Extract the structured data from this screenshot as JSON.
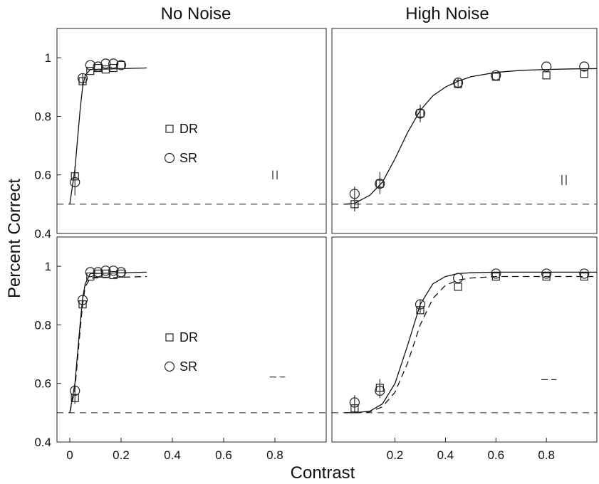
{
  "figure": {
    "xlabel": "Contrast",
    "ylabel": "Percent Correct",
    "column_titles": [
      "No Noise",
      "High Noise"
    ]
  },
  "chart_data": [
    {
      "type": "line",
      "title": "No Noise",
      "panel": "top-left",
      "xlim": [
        -0.05,
        1.0
      ],
      "ylim": [
        0.4,
        1.1
      ],
      "x_ticks": [],
      "x_tick_labels": [],
      "y_ticks": [
        0.4,
        0.6,
        0.8,
        1.0
      ],
      "y_tick_labels": [
        "0.4",
        "0.6",
        "0.8",
        "1"
      ],
      "legend": [
        {
          "label": "DR",
          "marker": "square"
        },
        {
          "label": "SR",
          "marker": "circle"
        }
      ],
      "legend_placement": "center",
      "chance_level": 0.5,
      "series": [
        {
          "name": "DR",
          "marker": "square",
          "x": [
            0.02,
            0.05,
            0.08,
            0.11,
            0.14,
            0.17,
            0.2
          ],
          "y": [
            0.595,
            0.92,
            0.955,
            0.965,
            0.96,
            0.965,
            0.975
          ]
        },
        {
          "name": "SR",
          "marker": "circle",
          "x": [
            0.02,
            0.05,
            0.08,
            0.11,
            0.14,
            0.17,
            0.2
          ],
          "y": [
            0.575,
            0.93,
            0.975,
            0.97,
            0.98,
            0.98,
            0.975
          ]
        }
      ],
      "fits": [
        {
          "style": "solid",
          "x": [
            0.0,
            0.02,
            0.04,
            0.05,
            0.06,
            0.08,
            0.3
          ],
          "y": [
            0.5,
            0.62,
            0.82,
            0.9,
            0.94,
            0.96,
            0.965
          ]
        }
      ],
      "error_bars": [
        {
          "x": 0.02,
          "ylow": 0.53,
          "yhigh": 0.63
        },
        {
          "x": 0.05,
          "ylow": 0.9,
          "yhigh": 0.945
        }
      ],
      "annotation": {
        "kind": "double-vertical",
        "x": 0.8,
        "y": [
          0.585,
          0.615
        ]
      }
    },
    {
      "type": "line",
      "title": "High Noise",
      "panel": "top-right",
      "xlim": [
        -0.05,
        1.0
      ],
      "ylim": [
        0.4,
        1.1
      ],
      "x_ticks": [],
      "x_tick_labels": [],
      "y_ticks": [],
      "y_tick_labels": [],
      "chance_level": 0.5,
      "series": [
        {
          "name": "DR",
          "marker": "square",
          "x": [
            0.04,
            0.14,
            0.3,
            0.45,
            0.6,
            0.8,
            0.95
          ],
          "y": [
            0.5,
            0.57,
            0.81,
            0.91,
            0.935,
            0.94,
            0.945
          ]
        },
        {
          "name": "SR",
          "marker": "circle",
          "x": [
            0.04,
            0.14,
            0.3,
            0.45,
            0.6,
            0.8,
            0.95
          ],
          "y": [
            0.535,
            0.57,
            0.81,
            0.915,
            0.94,
            0.97,
            0.97
          ]
        }
      ],
      "fits": [
        {
          "style": "solid",
          "x": [
            0.0,
            0.04,
            0.1,
            0.15,
            0.2,
            0.25,
            0.3,
            0.35,
            0.4,
            0.45,
            0.5,
            0.6,
            0.7,
            0.8,
            0.9,
            1.0
          ],
          "y": [
            0.5,
            0.503,
            0.53,
            0.575,
            0.655,
            0.745,
            0.82,
            0.87,
            0.9,
            0.92,
            0.935,
            0.95,
            0.957,
            0.96,
            0.962,
            0.963
          ]
        }
      ],
      "error_bars": [
        {
          "x": 0.04,
          "ylow": 0.475,
          "yhigh": 0.56
        },
        {
          "x": 0.14,
          "ylow": 0.535,
          "yhigh": 0.61
        },
        {
          "x": 0.3,
          "ylow": 0.78,
          "yhigh": 0.84
        },
        {
          "x": 0.45,
          "ylow": 0.895,
          "yhigh": 0.93
        }
      ],
      "annotation": {
        "kind": "double-vertical",
        "x": 0.87,
        "y": [
          0.565,
          0.6
        ]
      }
    },
    {
      "type": "line",
      "title": "",
      "panel": "bottom-left",
      "xlim": [
        -0.05,
        1.0
      ],
      "ylim": [
        0.4,
        1.1
      ],
      "x_ticks": [
        0,
        0.2,
        0.4,
        0.6,
        0.8
      ],
      "x_tick_labels": [
        "0",
        "0.2",
        "0.4",
        "0.6",
        "0.8"
      ],
      "y_ticks": [
        0.4,
        0.6,
        0.8,
        1.0
      ],
      "y_tick_labels": [
        "0.4",
        "0.6",
        "0.8",
        "1"
      ],
      "legend": [
        {
          "label": "DR",
          "marker": "square"
        },
        {
          "label": "SR",
          "marker": "circle"
        }
      ],
      "legend_placement": "center",
      "chance_level": 0.5,
      "series": [
        {
          "name": "DR",
          "marker": "square",
          "x": [
            0.02,
            0.05,
            0.08,
            0.11,
            0.14,
            0.17,
            0.2
          ],
          "y": [
            0.55,
            0.87,
            0.965,
            0.975,
            0.975,
            0.97,
            0.975
          ]
        },
        {
          "name": "SR",
          "marker": "circle",
          "x": [
            0.02,
            0.05,
            0.08,
            0.11,
            0.14,
            0.17,
            0.2
          ],
          "y": [
            0.575,
            0.885,
            0.98,
            0.98,
            0.985,
            0.985,
            0.98
          ]
        }
      ],
      "fits": [
        {
          "style": "solid",
          "x": [
            0.0,
            0.02,
            0.04,
            0.05,
            0.06,
            0.08,
            0.3
          ],
          "y": [
            0.5,
            0.6,
            0.8,
            0.89,
            0.94,
            0.975,
            0.98
          ]
        },
        {
          "style": "dashed",
          "x": [
            0.0,
            0.02,
            0.04,
            0.05,
            0.06,
            0.08,
            0.3
          ],
          "y": [
            0.5,
            0.58,
            0.78,
            0.87,
            0.93,
            0.96,
            0.965
          ]
        }
      ],
      "error_bars": [
        {
          "x": 0.02,
          "ylow": 0.53,
          "yhigh": 0.6
        },
        {
          "x": 0.05,
          "ylow": 0.86,
          "yhigh": 0.9
        }
      ],
      "annotation": {
        "kind": "horizontal-dash",
        "x": [
          0.78,
          0.84
        ],
        "y": 0.622
      }
    },
    {
      "type": "line",
      "title": "",
      "panel": "bottom-right",
      "xlim": [
        -0.05,
        1.0
      ],
      "ylim": [
        0.4,
        1.1
      ],
      "x_ticks": [
        0.2,
        0.4,
        0.6,
        0.8
      ],
      "x_tick_labels": [
        "0.2",
        "0.4",
        "0.6",
        "0.8"
      ],
      "y_ticks": [],
      "y_tick_labels": [],
      "chance_level": 0.5,
      "series": [
        {
          "name": "DR",
          "marker": "square",
          "x": [
            0.04,
            0.14,
            0.3,
            0.45,
            0.6,
            0.8,
            0.95
          ],
          "y": [
            0.515,
            0.585,
            0.85,
            0.93,
            0.965,
            0.965,
            0.965
          ]
        },
        {
          "name": "SR",
          "marker": "circle",
          "x": [
            0.04,
            0.14,
            0.3,
            0.45,
            0.6,
            0.8,
            0.95
          ],
          "y": [
            0.535,
            0.575,
            0.87,
            0.96,
            0.975,
            0.975,
            0.975
          ]
        }
      ],
      "fits": [
        {
          "style": "solid",
          "x": [
            0.0,
            0.04,
            0.1,
            0.15,
            0.2,
            0.25,
            0.3,
            0.35,
            0.4,
            0.45,
            0.5,
            0.6,
            0.8,
            1.0
          ],
          "y": [
            0.5,
            0.5,
            0.505,
            0.53,
            0.6,
            0.73,
            0.87,
            0.94,
            0.965,
            0.975,
            0.978,
            0.98,
            0.98,
            0.98
          ]
        },
        {
          "style": "dashed",
          "x": [
            0.0,
            0.04,
            0.1,
            0.15,
            0.2,
            0.25,
            0.3,
            0.35,
            0.4,
            0.45,
            0.5,
            0.6,
            0.8,
            1.0
          ],
          "y": [
            0.5,
            0.5,
            0.503,
            0.52,
            0.57,
            0.67,
            0.8,
            0.89,
            0.935,
            0.953,
            0.96,
            0.965,
            0.965,
            0.965
          ]
        }
      ],
      "error_bars": [
        {
          "x": 0.04,
          "ylow": 0.5,
          "yhigh": 0.56
        },
        {
          "x": 0.14,
          "ylow": 0.55,
          "yhigh": 0.615
        },
        {
          "x": 0.3,
          "ylow": 0.84,
          "yhigh": 0.885
        }
      ],
      "annotation": {
        "kind": "horizontal-dash",
        "x": [
          0.78,
          0.84
        ],
        "y": 0.613
      }
    }
  ]
}
